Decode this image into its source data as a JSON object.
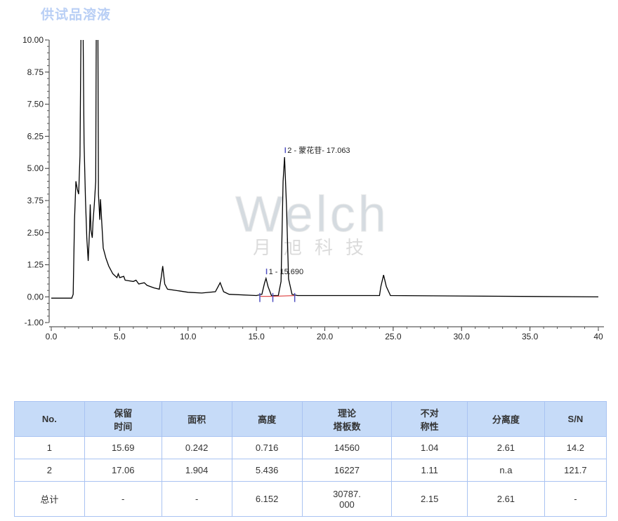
{
  "title": "供试品溶液",
  "watermark": {
    "logo": "Welch",
    "sub": "月旭科技"
  },
  "chart_data": {
    "type": "line",
    "xlim": [
      0,
      40
    ],
    "ylim": [
      -1.0,
      10.0
    ],
    "x_ticks": [
      "0.0",
      "5.0",
      "10.0",
      "15.0",
      "20.0",
      "25.0",
      "30.0",
      "35.0",
      "40"
    ],
    "x_tick_values": [
      0,
      5,
      10,
      15,
      20,
      25,
      30,
      35,
      40
    ],
    "y_ticks": [
      "10.00",
      "8.75",
      "7.50",
      "6.25",
      "5.00",
      "3.75",
      "2.50",
      "1.25",
      "0.00",
      "-1.00"
    ],
    "y_tick_values": [
      10,
      8.75,
      7.5,
      6.25,
      5,
      3.75,
      2.5,
      1.25,
      0,
      -1
    ],
    "grid": false,
    "series": [
      {
        "color": "#000000",
        "points": [
          [
            0,
            -0.05
          ],
          [
            1.5,
            -0.05
          ],
          [
            1.6,
            0.1
          ],
          [
            1.7,
            3.0
          ],
          [
            1.8,
            4.5
          ],
          [
            1.9,
            4.2
          ],
          [
            2.0,
            4.0
          ],
          [
            2.1,
            5.5
          ],
          [
            2.2,
            12
          ],
          [
            2.3,
            12
          ],
          [
            2.4,
            6
          ],
          [
            2.5,
            3.8
          ],
          [
            2.6,
            2.3
          ],
          [
            2.7,
            1.4
          ],
          [
            2.8,
            2.6
          ],
          [
            2.85,
            3.6
          ],
          [
            2.9,
            2.6
          ],
          [
            3.0,
            2.3
          ],
          [
            3.05,
            2.9
          ],
          [
            3.15,
            3.6
          ],
          [
            3.25,
            4.5
          ],
          [
            3.3,
            12
          ],
          [
            3.4,
            12
          ],
          [
            3.45,
            4
          ],
          [
            3.55,
            3.0
          ],
          [
            3.6,
            3.8
          ],
          [
            3.7,
            2.8
          ],
          [
            3.8,
            1.9
          ],
          [
            4.0,
            1.5
          ],
          [
            4.2,
            1.2
          ],
          [
            4.5,
            0.9
          ],
          [
            4.8,
            0.75
          ],
          [
            4.9,
            0.9
          ],
          [
            5.0,
            0.75
          ],
          [
            5.3,
            0.8
          ],
          [
            5.4,
            0.65
          ],
          [
            6.0,
            0.6
          ],
          [
            6.2,
            0.65
          ],
          [
            6.4,
            0.5
          ],
          [
            6.8,
            0.55
          ],
          [
            7.0,
            0.45
          ],
          [
            7.5,
            0.35
          ],
          [
            7.9,
            0.3
          ],
          [
            8.05,
            0.8
          ],
          [
            8.15,
            1.2
          ],
          [
            8.3,
            0.5
          ],
          [
            8.5,
            0.3
          ],
          [
            9.5,
            0.22
          ],
          [
            10.0,
            0.18
          ],
          [
            11.0,
            0.15
          ],
          [
            12.0,
            0.2
          ],
          [
            12.2,
            0.4
          ],
          [
            12.35,
            0.55
          ],
          [
            12.6,
            0.2
          ],
          [
            13.0,
            0.1
          ],
          [
            15.0,
            0.05
          ],
          [
            15.4,
            0.1
          ],
          [
            15.6,
            0.55
          ],
          [
            15.7,
            0.72
          ],
          [
            15.85,
            0.4
          ],
          [
            16.1,
            0.05
          ],
          [
            16.6,
            0.05
          ],
          [
            16.8,
            0.6
          ],
          [
            16.95,
            4.5
          ],
          [
            17.06,
            5.44
          ],
          [
            17.2,
            3.5
          ],
          [
            17.35,
            0.7
          ],
          [
            17.6,
            0.1
          ],
          [
            18.0,
            0.05
          ],
          [
            24.0,
            0.05
          ],
          [
            24.1,
            0.4
          ],
          [
            24.3,
            0.85
          ],
          [
            24.5,
            0.4
          ],
          [
            24.8,
            0.05
          ],
          [
            40,
            0.0
          ]
        ]
      }
    ],
    "annotations": [
      {
        "text": "1 - 15.690",
        "x": 15.69,
        "y": 0.716
      },
      {
        "text": "2 - 蒙花苷- 17.063",
        "x": 17.063,
        "y": 5.436
      }
    ],
    "integration_color": "#e05050",
    "marker_color": "#5050c0"
  },
  "table": {
    "headers": [
      "No.",
      "保留\n时间",
      "面积",
      "高度",
      "理论\n塔板数",
      "不对\n称性",
      "分离度",
      "S/N"
    ],
    "rows": [
      [
        "1",
        "15.69",
        "0.242",
        "0.716",
        "14560",
        "1.04",
        "2.61",
        "14.2"
      ],
      [
        "2",
        "17.06",
        "1.904",
        "5.436",
        "16227",
        "1.11",
        "n.a",
        "121.7"
      ],
      [
        "总计",
        "-",
        "-",
        "6.152",
        "30787.\n000",
        "2.15",
        "2.61",
        "-"
      ]
    ]
  }
}
